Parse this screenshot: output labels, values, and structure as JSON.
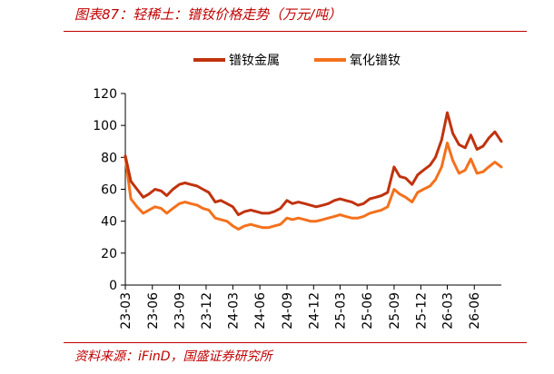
{
  "header": {
    "title": "图表87：轻稀土：镨钕价格走势（万元/吨）"
  },
  "footer": {
    "source": "资料来源：iFinD，国盛证券研究所"
  },
  "colors": {
    "accent": "#c00000",
    "metal": "#c0330e",
    "oxide": "#f4711c"
  },
  "chart_data": {
    "type": "line",
    "title": "",
    "xlabel": "",
    "ylabel": "",
    "ylim": [
      0,
      120
    ],
    "yticks": [
      0,
      20,
      40,
      60,
      80,
      100,
      120
    ],
    "xlim": [
      "2023-03",
      "2026-09"
    ],
    "xticks": [
      "23-03",
      "23-06",
      "23-09",
      "23-12",
      "24-03",
      "24-06",
      "24-09",
      "24-12",
      "25-03",
      "25-06",
      "25-09",
      "25-12",
      "26-03",
      "26-06"
    ],
    "grid": false,
    "legend_position": "top",
    "series": [
      {
        "name": "镨钕金属",
        "color": "#c0330e",
        "x": [
          "2023-03-01",
          "2023-03-20",
          "2023-04-10",
          "2023-05-01",
          "2023-05-20",
          "2023-06-10",
          "2023-07-01",
          "2023-07-20",
          "2023-08-10",
          "2023-09-01",
          "2023-09-20",
          "2023-10-10",
          "2023-11-01",
          "2023-11-20",
          "2023-12-10",
          "2024-01-01",
          "2024-01-20",
          "2024-02-10",
          "2024-03-01",
          "2024-03-20",
          "2024-04-10",
          "2024-05-01",
          "2024-05-20",
          "2024-06-10",
          "2024-07-01",
          "2024-07-20",
          "2024-08-10",
          "2024-09-01",
          "2024-09-20",
          "2024-10-10",
          "2024-11-01",
          "2024-11-20",
          "2024-12-10",
          "2025-01-01",
          "2025-01-20",
          "2025-02-10",
          "2025-03-01",
          "2025-03-20",
          "2025-04-10",
          "2025-05-01",
          "2025-05-20",
          "2025-06-10",
          "2025-07-01",
          "2025-07-20",
          "2025-08-10",
          "2025-09-01",
          "2025-09-20",
          "2025-10-10",
          "2025-11-01",
          "2025-11-20",
          "2025-12-10",
          "2026-01-01",
          "2026-01-20",
          "2026-02-10",
          "2026-03-01",
          "2026-03-20",
          "2026-04-10",
          "2026-05-01",
          "2026-05-20",
          "2026-06-10",
          "2026-07-01",
          "2026-07-20",
          "2026-08-10",
          "2026-09-01"
        ],
        "values": [
          81,
          65,
          60,
          55,
          57,
          60,
          59,
          56,
          60,
          63,
          64,
          63,
          62,
          60,
          58,
          52,
          53,
          51,
          49,
          44,
          46,
          47,
          46,
          45,
          45,
          46,
          48,
          53,
          51,
          52,
          51,
          50,
          49,
          50,
          51,
          53,
          54,
          53,
          52,
          50,
          51,
          54,
          55,
          56,
          58,
          74,
          68,
          67,
          63,
          69,
          72,
          75,
          80,
          91,
          108,
          95,
          88,
          86,
          94,
          85,
          87,
          92,
          96,
          90
        ]
      },
      {
        "name": "氧化镨钕",
        "color": "#f4711c",
        "x": [
          "2023-03-01",
          "2023-03-20",
          "2023-04-10",
          "2023-05-01",
          "2023-05-20",
          "2023-06-10",
          "2023-07-01",
          "2023-07-20",
          "2023-08-10",
          "2023-09-01",
          "2023-09-20",
          "2023-10-10",
          "2023-11-01",
          "2023-11-20",
          "2023-12-10",
          "2024-01-01",
          "2024-01-20",
          "2024-02-10",
          "2024-03-01",
          "2024-03-20",
          "2024-04-10",
          "2024-05-01",
          "2024-05-20",
          "2024-06-10",
          "2024-07-01",
          "2024-07-20",
          "2024-08-10",
          "2024-09-01",
          "2024-09-20",
          "2024-10-10",
          "2024-11-01",
          "2024-11-20",
          "2024-12-10",
          "2025-01-01",
          "2025-01-20",
          "2025-02-10",
          "2025-03-01",
          "2025-03-20",
          "2025-04-10",
          "2025-05-01",
          "2025-05-20",
          "2025-06-10",
          "2025-07-01",
          "2025-07-20",
          "2025-08-10",
          "2025-09-01",
          "2025-09-20",
          "2025-10-10",
          "2025-11-01",
          "2025-11-20",
          "2025-12-10",
          "2026-01-01",
          "2026-01-20",
          "2026-02-10",
          "2026-03-01",
          "2026-03-20",
          "2026-04-10",
          "2026-05-01",
          "2026-05-20",
          "2026-06-10",
          "2026-07-01",
          "2026-07-20",
          "2026-08-10",
          "2026-09-01"
        ],
        "values": [
          80,
          54,
          49,
          45,
          47,
          49,
          48,
          45,
          48,
          51,
          52,
          51,
          50,
          48,
          47,
          42,
          41,
          40,
          37,
          35,
          37,
          38,
          37,
          36,
          36,
          37,
          38,
          42,
          41,
          42,
          41,
          40,
          40,
          41,
          42,
          43,
          44,
          43,
          42,
          42,
          43,
          45,
          46,
          47,
          49,
          60,
          57,
          55,
          52,
          58,
          60,
          62,
          66,
          74,
          89,
          78,
          70,
          72,
          79,
          70,
          71,
          74,
          77,
          74
        ]
      }
    ]
  }
}
